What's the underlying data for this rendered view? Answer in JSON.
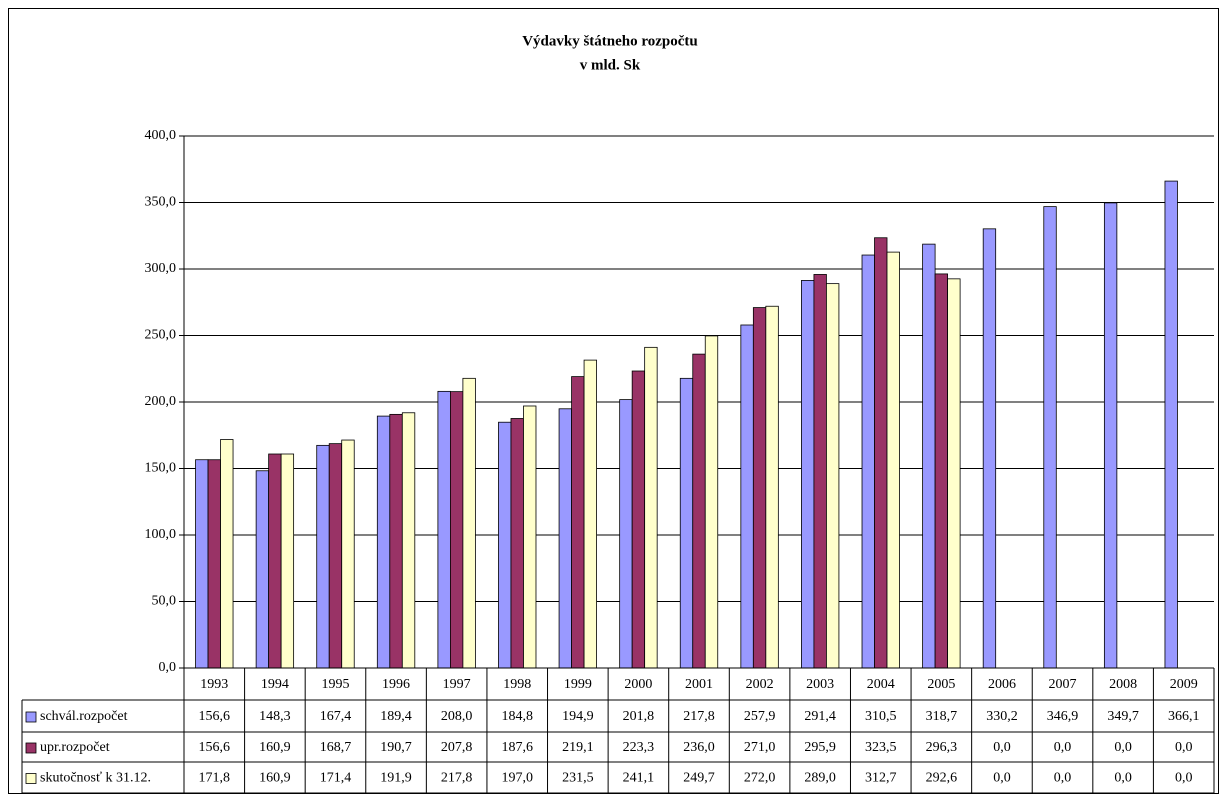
{
  "chart_data": {
    "type": "bar",
    "title": "Výdavky štátneho rozpočtu",
    "subtitle": "v mld. Sk",
    "categories": [
      "1993",
      "1994",
      "1995",
      "1996",
      "1997",
      "1998",
      "1999",
      "2000",
      "2001",
      "2002",
      "2003",
      "2004",
      "2005",
      "2006",
      "2007",
      "2008",
      "2009"
    ],
    "series": [
      {
        "name": "schvál.rozpočet",
        "color": "#9999ff",
        "values": [
          156.6,
          148.3,
          167.4,
          189.4,
          208.0,
          184.8,
          194.9,
          201.8,
          217.8,
          257.9,
          291.4,
          310.5,
          318.7,
          330.2,
          346.9,
          349.7,
          366.1
        ],
        "value_labels": [
          "156,6",
          "148,3",
          "167,4",
          "189,4",
          "208,0",
          "184,8",
          "194,9",
          "201,8",
          "217,8",
          "257,9",
          "291,4",
          "310,5",
          "318,7",
          "330,2",
          "346,9",
          "349,7",
          "366,1"
        ]
      },
      {
        "name": "upr.rozpočet",
        "color": "#993366",
        "values": [
          156.6,
          160.9,
          168.7,
          190.7,
          207.8,
          187.6,
          219.1,
          223.3,
          236.0,
          271.0,
          295.9,
          323.5,
          296.3,
          0,
          0,
          0,
          0
        ],
        "value_labels": [
          "156,6",
          "160,9",
          "168,7",
          "190,7",
          "207,8",
          "187,6",
          "219,1",
          "223,3",
          "236,0",
          "271,0",
          "295,9",
          "323,5",
          "296,3",
          "0,0",
          "0,0",
          "0,0",
          "0,0"
        ]
      },
      {
        "name": "skutočnosť k 31.12.",
        "color": "#ffffcc",
        "values": [
          171.8,
          160.9,
          171.4,
          191.9,
          217.8,
          197.0,
          231.5,
          241.1,
          249.7,
          272.0,
          289.0,
          312.7,
          292.6,
          0,
          0,
          0,
          0
        ],
        "value_labels": [
          "171,8",
          "160,9",
          "171,4",
          "191,9",
          "217,8",
          "197,0",
          "231,5",
          "241,1",
          "249,7",
          "272,0",
          "289,0",
          "312,7",
          "292,6",
          "0,0",
          "0,0",
          "0,0",
          "0,0"
        ]
      }
    ],
    "ylim": [
      0,
      400
    ],
    "yticks": [
      {
        "value": 0,
        "label": "0,0"
      },
      {
        "value": 50,
        "label": "50,0"
      },
      {
        "value": 100,
        "label": "100,0"
      },
      {
        "value": 150,
        "label": "150,0"
      },
      {
        "value": 200,
        "label": "200,0"
      },
      {
        "value": 250,
        "label": "250,0"
      },
      {
        "value": 300,
        "label": "300,0"
      },
      {
        "value": 350,
        "label": "350,0"
      },
      {
        "value": 400,
        "label": "400,0"
      }
    ],
    "grid": true
  }
}
